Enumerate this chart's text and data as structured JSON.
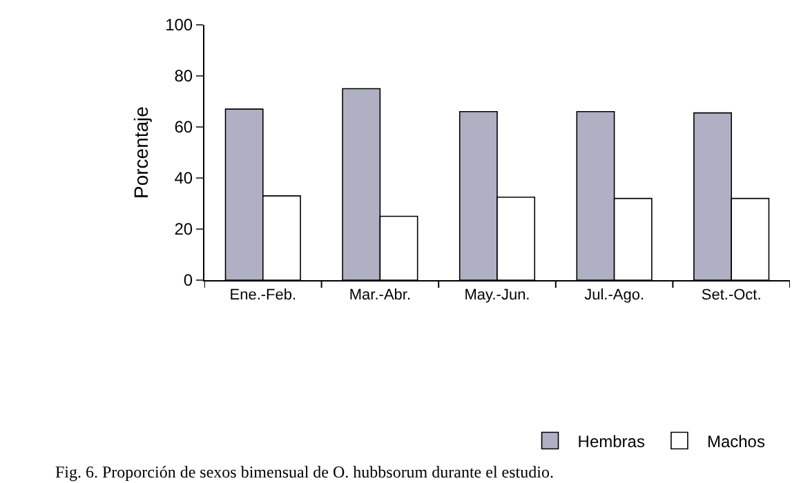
{
  "chart_data": {
    "type": "bar",
    "ylabel": "Porcentaje",
    "categories": [
      "Ene.-Feb.",
      "Mar.-Abr.",
      "May.-Jun.",
      "Jul.-Ago.",
      "Set.-Oct."
    ],
    "series": [
      {
        "name": "Hembras",
        "color": "#b0b0c4",
        "values": [
          67,
          75,
          66,
          66,
          65.5
        ]
      },
      {
        "name": "Machos",
        "color": "#ffffff",
        "values": [
          33,
          25,
          32.5,
          32,
          32
        ]
      }
    ],
    "ylim": [
      0,
      100
    ],
    "yticks": [
      0,
      20,
      40,
      60,
      80,
      100
    ],
    "legend": "bottom",
    "annotations": [
      "Fig. 6. Proporción de sexos bimensual de O. hubbsorum durante el estudio."
    ]
  }
}
